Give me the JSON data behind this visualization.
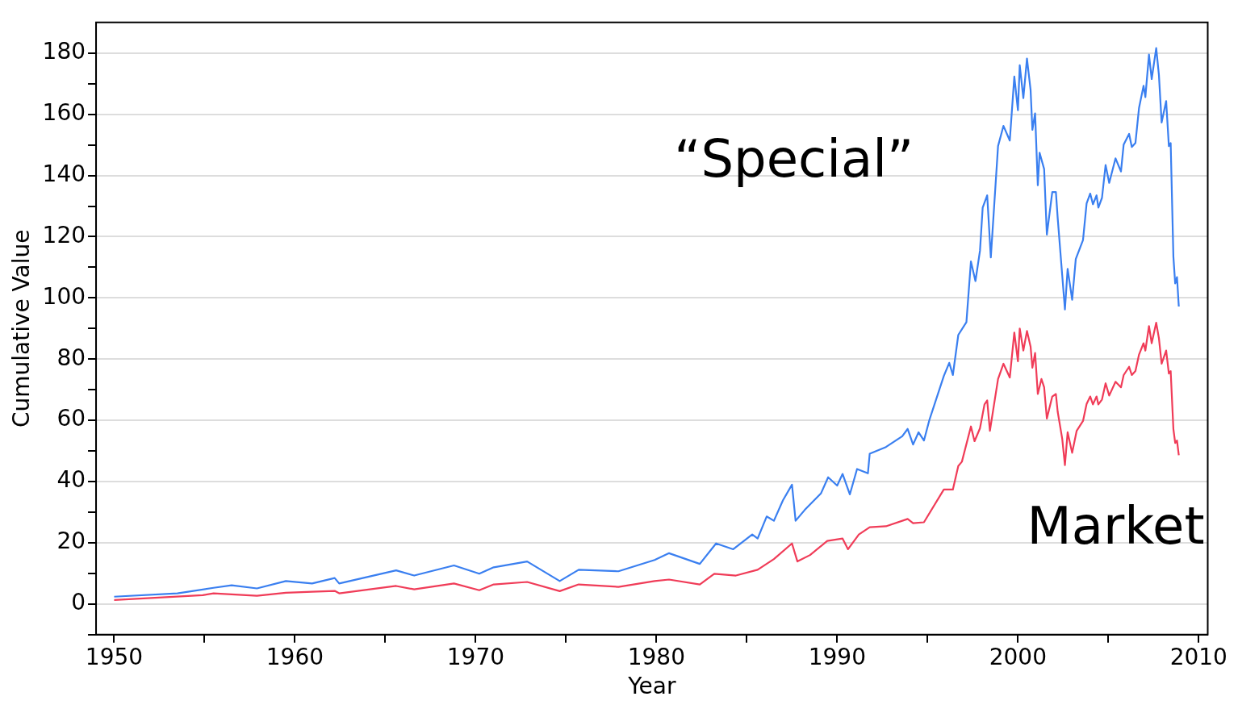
{
  "chart_data": {
    "type": "line",
    "xlabel": "Year",
    "ylabel": "Cumulative Value",
    "xlim": [
      1949,
      2010.5
    ],
    "ylim": [
      -10,
      190
    ],
    "xticks": [
      1950,
      {
        "value": 1955,
        "label": null
      },
      1960,
      {
        "value": 1965,
        "label": null
      },
      1970,
      {
        "value": 1975,
        "label": null
      },
      1980,
      {
        "value": 1985,
        "label": null
      },
      1990,
      {
        "value": 1995,
        "label": null
      },
      2000,
      {
        "value": 2005,
        "label": null
      },
      2010
    ],
    "yticks": [
      {
        "value": -10,
        "label": null
      },
      0,
      {
        "value": 10,
        "label": null
      },
      20,
      {
        "value": 30,
        "label": null
      },
      40,
      {
        "value": 50,
        "label": null
      },
      60,
      {
        "value": 70,
        "label": null
      },
      80,
      {
        "value": 90,
        "label": null
      },
      100,
      {
        "value": 110,
        "label": null
      },
      120,
      {
        "value": 130,
        "label": null
      },
      140,
      {
        "value": 150,
        "label": null
      },
      160,
      {
        "value": 170,
        "label": null
      },
      180
    ],
    "grid": "y",
    "legend": false,
    "marker": "none",
    "line_style": "solid",
    "series": [
      {
        "name": "“Special”",
        "color": "#3a7ff0",
        "x": [
          1950,
          1953.5,
          1955.5,
          1956.5,
          1957.9,
          1959.5,
          1960.95,
          1962.2,
          1962.45,
          1965.6,
          1966.6,
          1968.8,
          1970.2,
          1971,
          1972.85,
          1974.65,
          1975.7,
          1977.9,
          1979.9,
          1980.7,
          1982.4,
          1983.3,
          1984.25,
          1985.3,
          1985.6,
          1986.1,
          1986.5,
          1987,
          1987.5,
          1987.7,
          1988.2,
          1989.1,
          1989.5,
          1990,
          1990.3,
          1990.7,
          1991.1,
          1991.7,
          1991.8,
          1992.7,
          1993.6,
          1993.9,
          1994.2,
          1994.5,
          1994.8,
          1995.1,
          1995.9,
          1996.2,
          1996.4,
          1996.7,
          1997.15,
          1997.4,
          1997.65,
          1997.9,
          1998.05,
          1998.3,
          1998.5,
          1998.9,
          1999.2,
          1999.55,
          1999.8,
          2000,
          2000.1,
          2000.3,
          2000.5,
          2000.7,
          2000.8,
          2000.95,
          2001.1,
          2001.2,
          2001.45,
          2001.6,
          2001.9,
          2002.1,
          2002.2,
          2002.45,
          2002.6,
          2002.75,
          2003,
          2003.2,
          2003.6,
          2003.8,
          2004,
          2004.15,
          2004.35,
          2004.45,
          2004.65,
          2004.85,
          2005.05,
          2005.4,
          2005.7,
          2005.85,
          2006.15,
          2006.3,
          2006.5,
          2006.7,
          2006.95,
          2007.05,
          2007.25,
          2007.4,
          2007.65,
          2007.8,
          2007.95,
          2008.2,
          2008.35,
          2008.45,
          2008.6,
          2008.7,
          2008.8,
          2008.9
        ],
        "values": [
          2.4,
          3.5,
          5.3,
          6.1,
          5.1,
          7.5,
          6.7,
          8.5,
          6.7,
          11,
          9.3,
          12.6,
          9.9,
          12,
          13.9,
          7.5,
          11.2,
          10.7,
          14.4,
          16.6,
          13.1,
          19.8,
          17.9,
          22.7,
          21.4,
          28.6,
          27.2,
          33.9,
          39,
          27.2,
          30.7,
          36.1,
          41.4,
          38.7,
          42.5,
          35.8,
          44.1,
          42.7,
          49.1,
          51.3,
          54.8,
          57.2,
          52.1,
          56.1,
          53.4,
          60.1,
          74.5,
          78.8,
          74.8,
          87.9,
          92.1,
          111.9,
          105.5,
          115.4,
          129.5,
          133.5,
          113.2,
          149.6,
          156.2,
          151.4,
          172.3,
          161.3,
          176,
          165.3,
          178.2,
          168,
          154.9,
          160.3,
          136.8,
          147.4,
          142.1,
          120.7,
          134.6,
          134.6,
          126.1,
          107.4,
          96.2,
          109.5,
          99.4,
          112.7,
          118.9,
          130.9,
          134.1,
          130.6,
          133.5,
          129.5,
          132.7,
          143.4,
          137.6,
          145.6,
          141.3,
          150.1,
          153.6,
          149.3,
          150.6,
          162.1,
          169.3,
          165.6,
          179.5,
          171.5,
          181.6,
          172.8,
          157.3,
          164.3,
          149.6,
          150.6,
          113.5,
          104.7,
          106.8,
          97.2
        ]
      },
      {
        "name": "Market",
        "color": "#f03c58",
        "x": [
          1950,
          1954.9,
          1955.5,
          1957.9,
          1959.5,
          1960.95,
          1962.2,
          1962.45,
          1965.6,
          1966.6,
          1968.8,
          1970.2,
          1971,
          1972.85,
          1974.65,
          1975.7,
          1977.9,
          1979.9,
          1980.7,
          1982.4,
          1983.2,
          1984.4,
          1985.6,
          1986.5,
          1987.5,
          1987.8,
          1988.5,
          1989.45,
          1990.3,
          1990.6,
          1991.2,
          1991.8,
          1992.7,
          1993.9,
          1994.2,
          1994.8,
          1995.9,
          1996.4,
          1996.7,
          1996.9,
          1997.4,
          1997.6,
          1997.9,
          1998.15,
          1998.3,
          1998.45,
          1998.9,
          1999.2,
          1999.55,
          1999.8,
          2000,
          2000.1,
          2000.3,
          2000.5,
          2000.7,
          2000.8,
          2000.95,
          2001.1,
          2001.3,
          2001.45,
          2001.6,
          2001.9,
          2002.1,
          2002.2,
          2002.45,
          2002.6,
          2002.75,
          2003,
          2003.25,
          2003.6,
          2003.8,
          2004,
          2004.15,
          2004.35,
          2004.45,
          2004.65,
          2004.85,
          2005.05,
          2005.4,
          2005.7,
          2005.85,
          2006.15,
          2006.3,
          2006.5,
          2006.7,
          2006.95,
          2007.05,
          2007.25,
          2007.4,
          2007.65,
          2007.8,
          2007.95,
          2008.2,
          2008.35,
          2008.45,
          2008.6,
          2008.7,
          2008.8,
          2008.9
        ],
        "values": [
          1.3,
          2.9,
          3.5,
          2.7,
          3.7,
          4,
          4.3,
          3.5,
          5.9,
          4.8,
          6.7,
          4.5,
          6.4,
          7.2,
          4.2,
          6.4,
          5.6,
          7.5,
          8,
          6.4,
          9.9,
          9.3,
          11.2,
          14.7,
          19.8,
          13.9,
          16,
          20.6,
          21.4,
          17.9,
          22.7,
          25.1,
          25.4,
          27.8,
          26.4,
          26.7,
          37.4,
          37.4,
          45.1,
          46.5,
          58,
          53.2,
          57.4,
          65.2,
          66.5,
          56.6,
          73.5,
          78.5,
          74,
          88.7,
          79.3,
          90,
          82.8,
          89.2,
          84.1,
          77.2,
          82,
          68.6,
          73.5,
          70.8,
          60.6,
          67.8,
          68.6,
          62.8,
          54,
          45.4,
          56.1,
          49.4,
          56.6,
          59.8,
          65.4,
          67.8,
          65.2,
          67.8,
          65.2,
          66.8,
          72.1,
          68.1,
          72.6,
          70.8,
          74.8,
          77.5,
          74.8,
          76.1,
          81.5,
          85.2,
          82.8,
          90.8,
          85.2,
          91.9,
          86.8,
          78.5,
          82.8,
          75.3,
          76.1,
          57.2,
          52.6,
          53.4,
          48.6
        ]
      }
    ]
  }
}
